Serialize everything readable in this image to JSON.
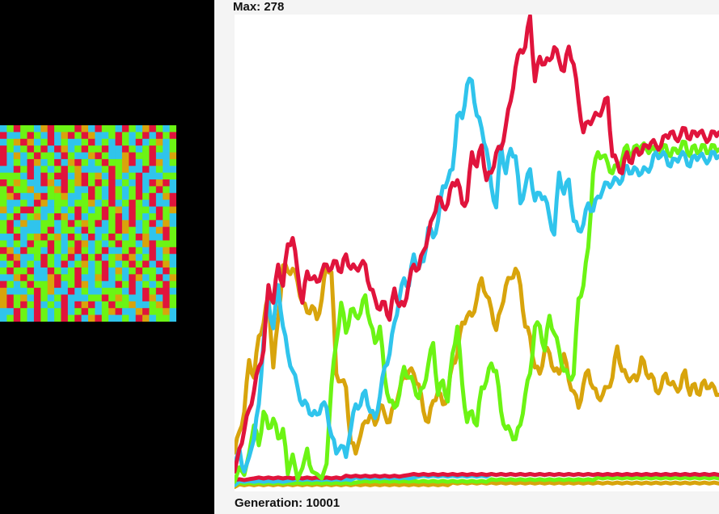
{
  "max_label": "Max: 278",
  "generation": {
    "prefix": "Generation: ",
    "value": "10001"
  },
  "palette": {
    "red": "#e0143c",
    "cyan": "#30c4ec",
    "green": "#6cf414",
    "gold": "#d8a40c",
    "black": "#000000"
  },
  "chart_data": {
    "type": "line",
    "ylim": [
      0,
      278
    ],
    "x": [
      0,
      1,
      2,
      3,
      4,
      5,
      6,
      7,
      8,
      9,
      10,
      11,
      12,
      13,
      14,
      15,
      16,
      17,
      18,
      19,
      20,
      21,
      22,
      23,
      24,
      25,
      26,
      27,
      28,
      29,
      30,
      31,
      32,
      33,
      34,
      35,
      36,
      37,
      38,
      39,
      40,
      41,
      42,
      43,
      44,
      45,
      46,
      47,
      48,
      49,
      50,
      51,
      52,
      53,
      54,
      55,
      56,
      57,
      58,
      59,
      60,
      61,
      62,
      63,
      64,
      65,
      66,
      67,
      68,
      69,
      70,
      71,
      72,
      73,
      74,
      75,
      76,
      77,
      78,
      79,
      80,
      81,
      82,
      83,
      84,
      85,
      86,
      87,
      88,
      89,
      90,
      91,
      92,
      93,
      94,
      95,
      96,
      97,
      98,
      99,
      100
    ],
    "series": [
      {
        "color": "#e0143c",
        "values": [
          10,
          22,
          35,
          45,
          58,
          70,
          82,
          118,
          110,
          130,
          120,
          142,
          148,
          126,
          110,
          126,
          124,
          120,
          128,
          130,
          130,
          132,
          128,
          136,
          130,
          128,
          132,
          130,
          118,
          110,
          106,
          108,
          100,
          116,
          108,
          106,
          122,
          130,
          130,
          138,
          150,
          158,
          172,
          164,
          168,
          178,
          182,
          166,
          170,
          196,
          190,
          200,
          182,
          184,
          198,
          198,
          214,
          226,
          248,
          256,
          260,
          276,
          240,
          252,
          250,
          250,
          260,
          250,
          246,
          258,
          250,
          226,
          210,
          214,
          218,
          218,
          224,
          228,
          196,
          190,
          186,
          196,
          192,
          198,
          198,
          200,
          204,
          200,
          202,
          206,
          210,
          204,
          208,
          210,
          206,
          208,
          210,
          205,
          206,
          208,
          210
        ]
      },
      {
        "color": "#30c4ec",
        "values": [
          14,
          22,
          10,
          18,
          30,
          48,
          88,
          108,
          95,
          118,
          96,
          78,
          70,
          58,
          50,
          48,
          44,
          42,
          50,
          46,
          32,
          20,
          26,
          18,
          36,
          48,
          50,
          56,
          46,
          40,
          55,
          70,
          80,
          96,
          112,
          122,
          120,
          136,
          130,
          132,
          154,
          146,
          158,
          176,
          182,
          186,
          220,
          216,
          238,
          238,
          220,
          210,
          200,
          176,
          166,
          200,
          186,
          198,
          196,
          166,
          178,
          186,
          170,
          172,
          172,
          158,
          150,
          184,
          174,
          180,
          158,
          150,
          156,
          166,
          164,
          170,
          176,
          178,
          180,
          180,
          182,
          188,
          186,
          186,
          186,
          186,
          190,
          196,
          196,
          194,
          190,
          192,
          196,
          194,
          190,
          194,
          196,
          192,
          194,
          196,
          196
        ]
      },
      {
        "color": "#6cf414",
        "values": [
          4,
          12,
          8,
          20,
          38,
          24,
          46,
          34,
          42,
          28,
          36,
          8,
          20,
          5,
          12,
          22,
          10,
          8,
          6,
          14,
          62,
          84,
          110,
          90,
          106,
          100,
          104,
          112,
          98,
          84,
          96,
          64,
          52,
          46,
          56,
          70,
          66,
          60,
          54,
          58,
          74,
          84,
          56,
          62,
          52,
          78,
          96,
          60,
          40,
          44,
          38,
          58,
          64,
          72,
          70,
          44,
          36,
          32,
          30,
          36,
          56,
          66,
          96,
          94,
          82,
          100,
          92,
          80,
          70,
          64,
          68,
          110,
          120,
          140,
          186,
          196,
          196,
          190,
          186,
          188,
          194,
          200,
          196,
          200,
          202,
          198,
          200,
          196,
          198,
          200,
          196,
          198,
          200,
          202,
          196,
          200,
          198,
          200,
          198,
          200,
          200
        ]
      },
      {
        "color": "#d8a40c",
        "values": [
          22,
          32,
          46,
          74,
          66,
          88,
          98,
          112,
          72,
          98,
          132,
          126,
          130,
          120,
          110,
          102,
          108,
          98,
          112,
          130,
          128,
          66,
          64,
          58,
          28,
          20,
          32,
          38,
          44,
          36,
          50,
          42,
          40,
          48,
          58,
          64,
          70,
          66,
          62,
          44,
          40,
          50,
          58,
          48,
          56,
          72,
          80,
          96,
          102,
          100,
          112,
          122,
          114,
          104,
          94,
          104,
          120,
          122,
          130,
          118,
          96,
          88,
          72,
          66,
          82,
          78,
          70,
          66,
          80,
          62,
          58,
          46,
          62,
          68,
          60,
          52,
          56,
          58,
          66,
          82,
          70,
          64,
          66,
          62,
          78,
          66,
          68,
          56,
          60,
          66,
          62,
          58,
          60,
          68,
          56,
          60,
          56,
          62,
          60,
          58,
          56
        ]
      },
      {
        "color": "#e0143c",
        "values": [
          5,
          5,
          5,
          5,
          6,
          6,
          6,
          6,
          6,
          6,
          6,
          6,
          6,
          6,
          6,
          6,
          6,
          6,
          6,
          6,
          6,
          6,
          6,
          7,
          7,
          7,
          7,
          7,
          7,
          7,
          7,
          7,
          7,
          7,
          7,
          7,
          8,
          8,
          8,
          8,
          8,
          8,
          8,
          8,
          8,
          8,
          8,
          8,
          8,
          8,
          8,
          8,
          8,
          8,
          8,
          8,
          8,
          8,
          8,
          8,
          8,
          8,
          8,
          8,
          8,
          8,
          8,
          8,
          8,
          8,
          8,
          8,
          8,
          8,
          8,
          8,
          8,
          8,
          8,
          8,
          8,
          8,
          8,
          8,
          8,
          8,
          8,
          8,
          8,
          8,
          8,
          8,
          8,
          8,
          8,
          8,
          8,
          8,
          8,
          8,
          8
        ]
      },
      {
        "color": "#30c4ec",
        "values": [
          2,
          4,
          4,
          4,
          4,
          4,
          4,
          4,
          4,
          4,
          4,
          4,
          5,
          5,
          5,
          5,
          5,
          5,
          5,
          5,
          5,
          5,
          5,
          5,
          5,
          6,
          6,
          6,
          6,
          6,
          6,
          6,
          6,
          6,
          6,
          6,
          6,
          6,
          7,
          7,
          7,
          7,
          7,
          7,
          7,
          7,
          7,
          7,
          7,
          7,
          7,
          7,
          7,
          8,
          8,
          8,
          8,
          8,
          8,
          8,
          8,
          8,
          8,
          8,
          8,
          8,
          8,
          8,
          8,
          8,
          8,
          8,
          8,
          8,
          8,
          8,
          8,
          8,
          8,
          8,
          8,
          8,
          8,
          8,
          8,
          8,
          8,
          8,
          8,
          8,
          8,
          8,
          8,
          8,
          8,
          8,
          8,
          8,
          8,
          8,
          8
        ]
      },
      {
        "color": "#6cf414",
        "values": [
          2,
          3,
          3,
          3,
          3,
          3,
          3,
          3,
          3,
          3,
          3,
          3,
          3,
          3,
          3,
          3,
          3,
          3,
          3,
          3,
          3,
          3,
          3,
          3,
          3,
          3,
          4,
          4,
          4,
          4,
          4,
          4,
          4,
          4,
          4,
          4,
          4,
          4,
          4,
          4,
          4,
          4,
          4,
          4,
          4,
          4,
          4,
          4,
          4,
          4,
          4,
          4,
          4,
          5,
          5,
          5,
          5,
          5,
          5,
          5,
          5,
          5,
          5,
          5,
          5,
          5,
          5,
          5,
          5,
          5,
          5,
          5,
          5,
          5,
          5,
          6,
          6,
          6,
          6,
          6,
          6,
          6,
          6,
          6,
          6,
          6,
          6,
          6,
          6,
          6,
          6,
          6,
          6,
          6,
          6,
          6,
          6,
          6,
          6,
          6,
          6
        ]
      },
      {
        "color": "#d8a40c",
        "values": [
          1,
          2,
          2,
          2,
          2,
          2,
          2,
          2,
          2,
          2,
          2,
          2,
          2,
          2,
          2,
          2,
          2,
          2,
          2,
          2,
          2,
          2,
          2,
          2,
          2,
          2,
          2,
          2,
          2,
          2,
          2,
          2,
          2,
          2,
          2,
          2,
          2,
          2,
          2,
          2,
          2,
          2,
          2,
          2,
          2,
          3,
          3,
          3,
          3,
          3,
          3,
          3,
          3,
          3,
          3,
          3,
          3,
          3,
          3,
          3,
          3,
          3,
          3,
          3,
          3,
          3,
          3,
          3,
          3,
          3,
          3,
          3,
          3,
          3,
          3,
          3,
          3,
          3,
          3,
          3,
          3,
          3,
          3,
          3,
          3,
          3,
          3,
          3,
          3,
          3,
          3,
          3,
          3,
          3,
          3,
          3,
          3,
          3,
          3,
          3,
          3
        ]
      }
    ]
  },
  "grid": {
    "cols": 26,
    "rows": 29,
    "colors": [
      "#e0143c",
      "#30c4ec",
      "#6cf414",
      "#d8a40c"
    ],
    "cells": "1202213022203102210213021201120210130203112021201020123031201211201210210123120212020103120220110212021201312022102113021130220113012103120130212022301203121102012120231112023110121122210102001302310212011122023211031023020201210103012022311230211021021201202123011302231120210212020130211210312212231201202101103120021121202120231022102312012312031012202010212021201311221202320120301201312021112012210211203212130211012302310210120212031102212102202120312"
  }
}
